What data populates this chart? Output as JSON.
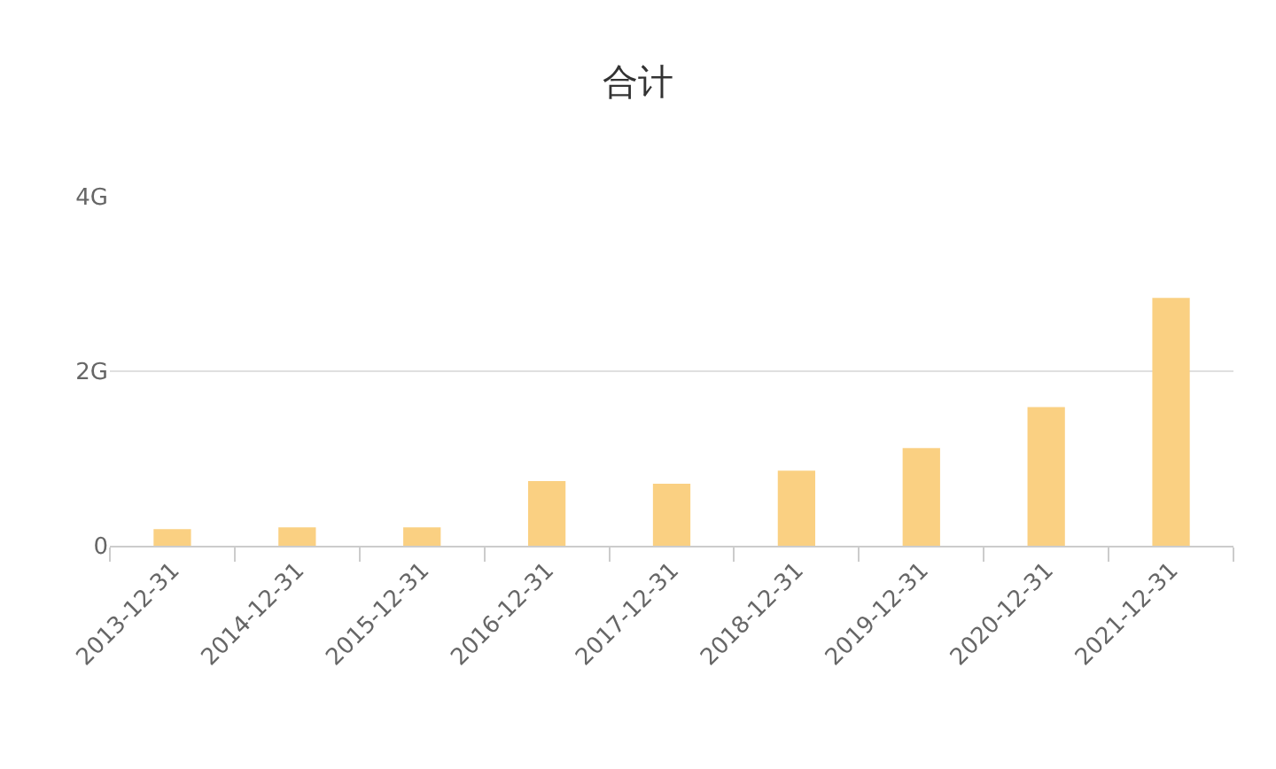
{
  "chart_data": {
    "type": "bar",
    "title": "合计",
    "categories": [
      "2013-12-31",
      "2014-12-31",
      "2015-12-31",
      "2016-12-31",
      "2017-12-31",
      "2018-12-31",
      "2019-12-31",
      "2020-12-31",
      "2021-12-31"
    ],
    "values": [
      0.19,
      0.21,
      0.21,
      0.74,
      0.71,
      0.86,
      1.12,
      1.59,
      2.84
    ],
    "color": "#fad082",
    "ylim": [
      0,
      4
    ],
    "yticks": [
      0,
      {
        "value": 2,
        "label": "2G"
      },
      {
        "value": 4,
        "label": "4G"
      }
    ],
    "grid": "y",
    "legend": false
  }
}
